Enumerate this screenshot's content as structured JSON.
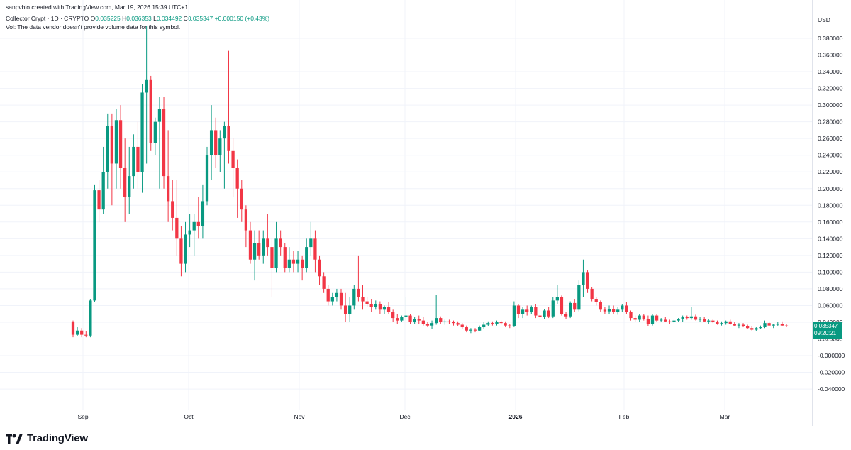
{
  "header": {
    "caption": "sanpvblo created with TradingView.com, Mar 19, 2026 15:39 UTC+1"
  },
  "legend": {
    "symbol": "Collector Crypt · 1D · CRYPTO",
    "open_label": "O",
    "open": "0.035225",
    "high_label": "H",
    "high": "0.036353",
    "low_label": "L",
    "low": "0.034492",
    "close_label": "C",
    "close": "0.035347",
    "change": "+0.000150 (+0.43%)",
    "volume_note": "Vol: The data vendor doesn't provide volume data for this symbol."
  },
  "axis": {
    "currency": "USD",
    "price_ticks": [
      "0.380000",
      "0.360000",
      "0.340000",
      "0.320000",
      "0.300000",
      "0.280000",
      "0.260000",
      "0.240000",
      "0.220000",
      "0.200000",
      "0.180000",
      "0.160000",
      "0.140000",
      "0.120000",
      "0.100000",
      "0.080000",
      "0.060000",
      "0.040000",
      "0.020000",
      "-0.000000",
      "-0.020000",
      "-0.040000"
    ],
    "time_ticks": [
      "Sep",
      "Oct",
      "Nov",
      "Dec",
      "2026",
      "Feb",
      "Mar"
    ],
    "last_price": "0.035347",
    "countdown": "09:20:21"
  },
  "colors": {
    "up": "#089981",
    "down": "#f23645",
    "grid": "#f0f3fa",
    "last_line": "#089981"
  },
  "footer": {
    "brand": "TradingView",
    "logo_icon": "tradingview-logo-icon"
  },
  "chart_data": {
    "type": "candlestick",
    "title": "Collector Crypt · 1D · CRYPTO",
    "ylabel": "USD",
    "ylim": [
      -0.05,
      0.395
    ],
    "x_ticks": [
      "Sep",
      "Oct",
      "Nov",
      "Dec",
      "2026",
      "Feb",
      "Mar"
    ],
    "grid": true,
    "candles": [
      [
        0.04,
        0.042,
        0.022,
        0.025
      ],
      [
        0.025,
        0.034,
        0.023,
        0.03
      ],
      [
        0.03,
        0.033,
        0.022,
        0.025
      ],
      [
        0.025,
        0.029,
        0.022,
        0.024
      ],
      [
        0.024,
        0.068,
        0.022,
        0.066
      ],
      [
        0.066,
        0.205,
        0.064,
        0.198
      ],
      [
        0.198,
        0.21,
        0.16,
        0.175
      ],
      [
        0.175,
        0.25,
        0.17,
        0.22
      ],
      [
        0.22,
        0.29,
        0.2,
        0.275
      ],
      [
        0.275,
        0.29,
        0.18,
        0.23
      ],
      [
        0.23,
        0.295,
        0.2,
        0.282
      ],
      [
        0.282,
        0.3,
        0.2,
        0.225
      ],
      [
        0.225,
        0.26,
        0.16,
        0.19
      ],
      [
        0.19,
        0.25,
        0.17,
        0.215
      ],
      [
        0.215,
        0.265,
        0.2,
        0.25
      ],
      [
        0.25,
        0.28,
        0.2,
        0.22
      ],
      [
        0.22,
        0.325,
        0.195,
        0.315
      ],
      [
        0.315,
        0.395,
        0.23,
        0.33
      ],
      [
        0.33,
        0.335,
        0.245,
        0.255
      ],
      [
        0.255,
        0.285,
        0.24,
        0.28
      ],
      [
        0.28,
        0.31,
        0.2,
        0.295
      ],
      [
        0.295,
        0.31,
        0.2,
        0.215
      ],
      [
        0.215,
        0.27,
        0.16,
        0.185
      ],
      [
        0.185,
        0.21,
        0.15,
        0.165
      ],
      [
        0.165,
        0.21,
        0.12,
        0.14
      ],
      [
        0.14,
        0.155,
        0.095,
        0.11
      ],
      [
        0.11,
        0.16,
        0.1,
        0.145
      ],
      [
        0.145,
        0.17,
        0.13,
        0.15
      ],
      [
        0.15,
        0.17,
        0.12,
        0.16
      ],
      [
        0.16,
        0.19,
        0.14,
        0.155
      ],
      [
        0.155,
        0.205,
        0.14,
        0.185
      ],
      [
        0.185,
        0.25,
        0.18,
        0.24
      ],
      [
        0.24,
        0.3,
        0.21,
        0.27
      ],
      [
        0.27,
        0.285,
        0.225,
        0.24
      ],
      [
        0.24,
        0.27,
        0.22,
        0.26
      ],
      [
        0.26,
        0.28,
        0.2,
        0.275
      ],
      [
        0.275,
        0.365,
        0.23,
        0.245
      ],
      [
        0.245,
        0.26,
        0.19,
        0.225
      ],
      [
        0.225,
        0.235,
        0.165,
        0.2
      ],
      [
        0.2,
        0.21,
        0.16,
        0.175
      ],
      [
        0.175,
        0.18,
        0.13,
        0.15
      ],
      [
        0.15,
        0.16,
        0.11,
        0.115
      ],
      [
        0.115,
        0.15,
        0.09,
        0.135
      ],
      [
        0.135,
        0.15,
        0.115,
        0.12
      ],
      [
        0.12,
        0.15,
        0.11,
        0.14
      ],
      [
        0.14,
        0.17,
        0.12,
        0.13
      ],
      [
        0.13,
        0.14,
        0.07,
        0.105
      ],
      [
        0.105,
        0.16,
        0.1,
        0.14
      ],
      [
        0.14,
        0.15,
        0.12,
        0.13
      ],
      [
        0.13,
        0.135,
        0.1,
        0.105
      ],
      [
        0.105,
        0.13,
        0.1,
        0.115
      ],
      [
        0.115,
        0.125,
        0.1,
        0.11
      ],
      [
        0.11,
        0.125,
        0.1,
        0.115
      ],
      [
        0.115,
        0.12,
        0.09,
        0.105
      ],
      [
        0.105,
        0.14,
        0.1,
        0.13
      ],
      [
        0.13,
        0.16,
        0.12,
        0.14
      ],
      [
        0.14,
        0.15,
        0.1,
        0.115
      ],
      [
        0.115,
        0.12,
        0.085,
        0.095
      ],
      [
        0.095,
        0.1,
        0.075,
        0.08
      ],
      [
        0.08,
        0.085,
        0.06,
        0.065
      ],
      [
        0.065,
        0.075,
        0.06,
        0.07
      ],
      [
        0.07,
        0.08,
        0.065,
        0.075
      ],
      [
        0.075,
        0.08,
        0.055,
        0.06
      ],
      [
        0.06,
        0.075,
        0.04,
        0.05
      ],
      [
        0.05,
        0.07,
        0.04,
        0.06
      ],
      [
        0.06,
        0.085,
        0.055,
        0.08
      ],
      [
        0.08,
        0.12,
        0.065,
        0.07
      ],
      [
        0.07,
        0.085,
        0.055,
        0.065
      ],
      [
        0.065,
        0.07,
        0.058,
        0.062
      ],
      [
        0.062,
        0.068,
        0.052,
        0.058
      ],
      [
        0.058,
        0.066,
        0.055,
        0.062
      ],
      [
        0.062,
        0.065,
        0.05,
        0.055
      ],
      [
        0.055,
        0.06,
        0.05,
        0.058
      ],
      [
        0.058,
        0.064,
        0.05,
        0.052
      ],
      [
        0.052,
        0.055,
        0.04,
        0.045
      ],
      [
        0.045,
        0.05,
        0.038,
        0.042
      ],
      [
        0.042,
        0.048,
        0.04,
        0.046
      ],
      [
        0.046,
        0.07,
        0.042,
        0.048
      ],
      [
        0.048,
        0.05,
        0.038,
        0.04
      ],
      [
        0.04,
        0.046,
        0.038,
        0.044
      ],
      [
        0.044,
        0.048,
        0.038,
        0.042
      ],
      [
        0.042,
        0.046,
        0.036,
        0.038
      ],
      [
        0.038,
        0.04,
        0.034,
        0.036
      ],
      [
        0.036,
        0.042,
        0.032,
        0.039
      ],
      [
        0.039,
        0.073,
        0.037,
        0.045
      ],
      [
        0.045,
        0.047,
        0.038,
        0.04
      ],
      [
        0.04,
        0.043,
        0.037,
        0.041
      ],
      [
        0.041,
        0.043,
        0.038,
        0.04
      ],
      [
        0.04,
        0.042,
        0.036,
        0.039
      ],
      [
        0.039,
        0.041,
        0.035,
        0.037
      ],
      [
        0.037,
        0.039,
        0.032,
        0.034
      ],
      [
        0.034,
        0.036,
        0.028,
        0.03
      ],
      [
        0.03,
        0.033,
        0.027,
        0.031
      ],
      [
        0.031,
        0.033,
        0.028,
        0.03
      ],
      [
        0.03,
        0.036,
        0.029,
        0.034
      ],
      [
        0.034,
        0.04,
        0.032,
        0.037
      ],
      [
        0.037,
        0.041,
        0.035,
        0.039
      ],
      [
        0.039,
        0.041,
        0.036,
        0.038
      ],
      [
        0.038,
        0.042,
        0.036,
        0.04
      ],
      [
        0.04,
        0.042,
        0.037,
        0.039
      ],
      [
        0.039,
        0.041,
        0.034,
        0.036
      ],
      [
        0.036,
        0.038,
        0.033,
        0.035
      ],
      [
        0.035,
        0.065,
        0.034,
        0.06
      ],
      [
        0.06,
        0.062,
        0.045,
        0.05
      ],
      [
        0.05,
        0.058,
        0.045,
        0.055
      ],
      [
        0.055,
        0.06,
        0.048,
        0.052
      ],
      [
        0.052,
        0.06,
        0.05,
        0.058
      ],
      [
        0.058,
        0.062,
        0.045,
        0.048
      ],
      [
        0.048,
        0.05,
        0.043,
        0.046
      ],
      [
        0.046,
        0.056,
        0.044,
        0.054
      ],
      [
        0.054,
        0.058,
        0.045,
        0.047
      ],
      [
        0.047,
        0.07,
        0.045,
        0.066
      ],
      [
        0.066,
        0.085,
        0.062,
        0.07
      ],
      [
        0.07,
        0.072,
        0.048,
        0.05
      ],
      [
        0.05,
        0.052,
        0.044,
        0.047
      ],
      [
        0.047,
        0.065,
        0.045,
        0.063
      ],
      [
        0.063,
        0.068,
        0.052,
        0.055
      ],
      [
        0.055,
        0.09,
        0.053,
        0.085
      ],
      [
        0.085,
        0.115,
        0.07,
        0.1
      ],
      [
        0.1,
        0.102,
        0.075,
        0.08
      ],
      [
        0.08,
        0.082,
        0.065,
        0.068
      ],
      [
        0.068,
        0.07,
        0.06,
        0.064
      ],
      [
        0.064,
        0.066,
        0.052,
        0.055
      ],
      [
        0.055,
        0.058,
        0.05,
        0.053
      ],
      [
        0.053,
        0.06,
        0.05,
        0.056
      ],
      [
        0.056,
        0.06,
        0.05,
        0.052
      ],
      [
        0.052,
        0.058,
        0.049,
        0.055
      ],
      [
        0.055,
        0.062,
        0.052,
        0.06
      ],
      [
        0.06,
        0.064,
        0.05,
        0.052
      ],
      [
        0.052,
        0.054,
        0.042,
        0.045
      ],
      [
        0.045,
        0.048,
        0.04,
        0.043
      ],
      [
        0.043,
        0.05,
        0.04,
        0.048
      ],
      [
        0.048,
        0.05,
        0.042,
        0.044
      ],
      [
        0.044,
        0.048,
        0.035,
        0.038
      ],
      [
        0.038,
        0.05,
        0.036,
        0.048
      ],
      [
        0.048,
        0.05,
        0.04,
        0.042
      ],
      [
        0.042,
        0.045,
        0.04,
        0.043
      ],
      [
        0.043,
        0.046,
        0.04,
        0.041
      ],
      [
        0.041,
        0.043,
        0.038,
        0.04
      ],
      [
        0.04,
        0.044,
        0.038,
        0.042
      ],
      [
        0.042,
        0.045,
        0.04,
        0.044
      ],
      [
        0.044,
        0.048,
        0.04,
        0.046
      ],
      [
        0.046,
        0.048,
        0.043,
        0.045
      ],
      [
        0.045,
        0.058,
        0.043,
        0.047
      ],
      [
        0.047,
        0.049,
        0.042,
        0.043
      ],
      [
        0.043,
        0.046,
        0.04,
        0.044
      ],
      [
        0.044,
        0.046,
        0.04,
        0.041
      ],
      [
        0.041,
        0.044,
        0.038,
        0.042
      ],
      [
        0.042,
        0.044,
        0.039,
        0.04
      ],
      [
        0.04,
        0.042,
        0.037,
        0.038
      ],
      [
        0.038,
        0.041,
        0.036,
        0.039
      ],
      [
        0.039,
        0.042,
        0.037,
        0.041
      ],
      [
        0.041,
        0.043,
        0.037,
        0.038
      ],
      [
        0.038,
        0.04,
        0.035,
        0.036
      ],
      [
        0.036,
        0.039,
        0.033,
        0.037
      ],
      [
        0.037,
        0.039,
        0.034,
        0.035
      ],
      [
        0.035,
        0.037,
        0.032,
        0.033
      ],
      [
        0.033,
        0.035,
        0.03,
        0.031
      ],
      [
        0.031,
        0.034,
        0.029,
        0.033
      ],
      [
        0.033,
        0.036,
        0.032,
        0.034
      ],
      [
        0.034,
        0.042,
        0.033,
        0.039
      ],
      [
        0.039,
        0.041,
        0.035,
        0.036
      ],
      [
        0.036,
        0.038,
        0.033,
        0.037
      ],
      [
        0.037,
        0.04,
        0.035,
        0.038
      ],
      [
        0.038,
        0.041,
        0.035,
        0.036
      ],
      [
        0.036,
        0.038,
        0.034,
        0.0353
      ]
    ]
  }
}
